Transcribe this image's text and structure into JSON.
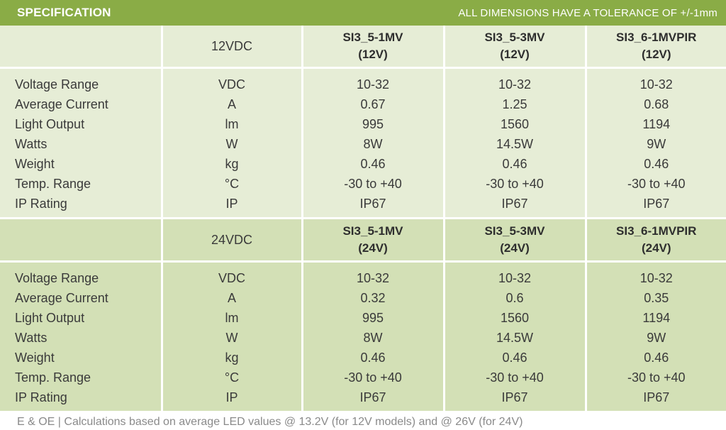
{
  "header": {
    "title": "SPECIFICATION",
    "tolerance": "ALL DIMENSIONS HAVE A TOLERANCE OF +/-1mm"
  },
  "sections": [
    {
      "voltage": "12VDC",
      "models": [
        {
          "name": "SI3_5-1MV",
          "variant": "(12V)"
        },
        {
          "name": "SI3_5-3MV",
          "variant": "(12V)"
        },
        {
          "name": "SI3_6-1MVPIR",
          "variant": "(12V)"
        }
      ],
      "rows": [
        {
          "label": "Voltage Range",
          "unit": "VDC",
          "values": [
            "10-32",
            "10-32",
            "10-32"
          ]
        },
        {
          "label": "Average Current",
          "unit": "A",
          "values": [
            "0.67",
            "1.25",
            "0.68"
          ]
        },
        {
          "label": "Light Output",
          "unit": "lm",
          "values": [
            "995",
            "1560",
            "1194"
          ]
        },
        {
          "label": "Watts",
          "unit": "W",
          "values": [
            "8W",
            "14.5W",
            "9W"
          ]
        },
        {
          "label": "Weight",
          "unit": "kg",
          "values": [
            "0.46",
            "0.46",
            "0.46"
          ]
        },
        {
          "label": "Temp. Range",
          "unit": "°C",
          "values": [
            "-30 to +40",
            "-30 to +40",
            "-30 to +40"
          ]
        },
        {
          "label": "IP Rating",
          "unit": "IP",
          "values": [
            "IP67",
            "IP67",
            "IP67"
          ]
        }
      ]
    },
    {
      "voltage": "24VDC",
      "models": [
        {
          "name": "SI3_5-1MV",
          "variant": "(24V)"
        },
        {
          "name": "SI3_5-3MV",
          "variant": "(24V)"
        },
        {
          "name": "SI3_6-1MVPIR",
          "variant": "(24V)"
        }
      ],
      "rows": [
        {
          "label": "Voltage Range",
          "unit": "VDC",
          "values": [
            "10-32",
            "10-32",
            "10-32"
          ]
        },
        {
          "label": "Average Current",
          "unit": "A",
          "values": [
            "0.32",
            "0.6",
            "0.35"
          ]
        },
        {
          "label": "Light Output",
          "unit": "lm",
          "values": [
            "995",
            "1560",
            "1194"
          ]
        },
        {
          "label": "Watts",
          "unit": "W",
          "values": [
            "8W",
            "14.5W",
            "9W"
          ]
        },
        {
          "label": "Weight",
          "unit": "kg",
          "values": [
            "0.46",
            "0.46",
            "0.46"
          ]
        },
        {
          "label": "Temp. Range",
          "unit": "°C",
          "values": [
            "-30 to +40",
            "-30 to +40",
            "-30 to +40"
          ]
        },
        {
          "label": "IP Rating",
          "unit": "IP",
          "values": [
            "IP67",
            "IP67",
            "IP67"
          ]
        }
      ]
    }
  ],
  "footer": {
    "text": "E & OE  |  Calculations based on average LED values @ 13.2V (for 12V models) and @ 26V (for 24V)"
  },
  "colors": {
    "header_bar": "#8aac46",
    "section1_bg": "#e6edd6",
    "section2_bg": "#d3e0b6"
  }
}
